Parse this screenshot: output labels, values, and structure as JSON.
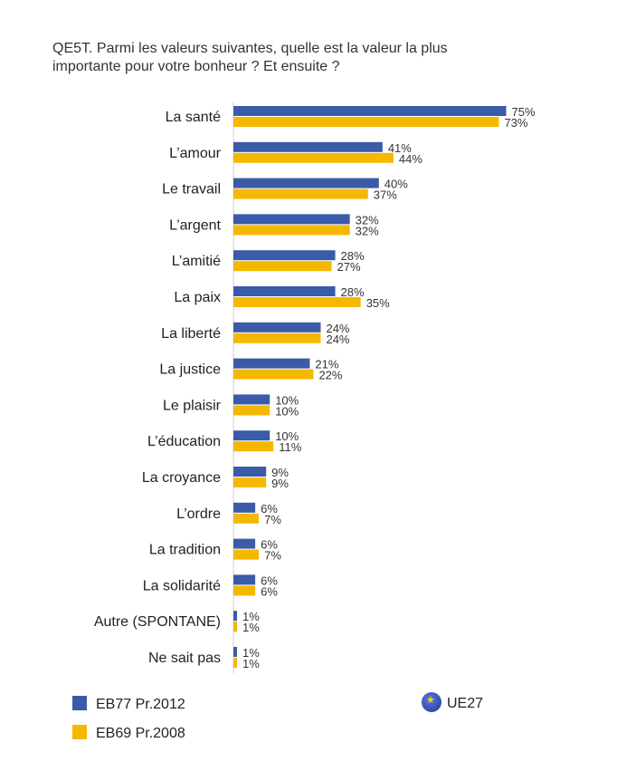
{
  "title_line1": "QE5T. Parmi les valeurs suivantes, quelle est la valeur la plus",
  "title_line2": "importante pour votre bonheur ? Et ensuite ?",
  "colors": {
    "series1": "#3a5ba8",
    "series2": "#f5b800"
  },
  "chart_data": {
    "type": "bar",
    "orientation": "horizontal",
    "title": "QE5T. Parmi les valeurs suivantes, quelle est la valeur la plus importante pour votre bonheur ? Et ensuite ?",
    "categories": [
      "La santé",
      "L’amour",
      "Le travail",
      "L’argent",
      "L’amitié",
      "La paix",
      "La liberté",
      "La justice",
      "Le plaisir",
      "L’éducation",
      "La croyance",
      "L’ordre",
      "La tradition",
      "La solidarité",
      "Autre (SPONTANE)",
      "Ne sait pas"
    ],
    "series": [
      {
        "name": "EB77 Pr.2012",
        "values": [
          75,
          41,
          40,
          32,
          28,
          28,
          24,
          21,
          10,
          10,
          9,
          6,
          6,
          6,
          1,
          1
        ]
      },
      {
        "name": "EB69 Pr.2008",
        "values": [
          73,
          44,
          37,
          32,
          27,
          35,
          24,
          22,
          10,
          11,
          9,
          7,
          7,
          6,
          1,
          1
        ]
      }
    ],
    "unit": "%",
    "xlim": [
      0,
      75
    ]
  },
  "legend": {
    "items": [
      "EB77 Pr.2012",
      "EB69 Pr.2008"
    ],
    "region": "UE27"
  }
}
